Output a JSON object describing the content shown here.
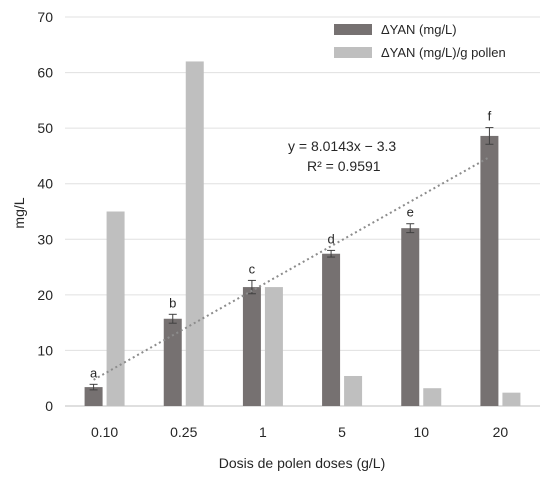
{
  "chart_data": {
    "type": "bar",
    "categories": [
      "0.10",
      "0.25",
      "1",
      "5",
      "10",
      "20"
    ],
    "series": [
      {
        "name": "ΔYAN (mg/L)",
        "color": "#767171",
        "values": [
          3.4,
          15.7,
          21.4,
          27.4,
          32.0,
          48.6
        ],
        "errors": [
          0.5,
          0.8,
          1.2,
          0.6,
          0.8,
          1.5
        ],
        "labels": [
          "a",
          "b",
          "c",
          "d",
          "e",
          "f"
        ]
      },
      {
        "name": "ΔYAN (mg/L)/g pollen",
        "color": "#bfbfbf",
        "values": [
          35.0,
          62.0,
          21.4,
          5.4,
          3.2,
          2.4
        ]
      }
    ],
    "xlabel": "Dosis de polen doses (g/L)",
    "ylabel": "mg/L",
    "ylim": [
      0,
      70
    ],
    "yticks": [
      0,
      10,
      20,
      30,
      40,
      50,
      60,
      70
    ],
    "grid": true,
    "legend_position": "top-right",
    "trendline": {
      "series": 0,
      "slope": 8.0143,
      "intercept": -3.3,
      "equation": "y = 8.0143x − 3.3",
      "r2": "R² = 0.9591",
      "color": "#8c8c8c"
    }
  }
}
